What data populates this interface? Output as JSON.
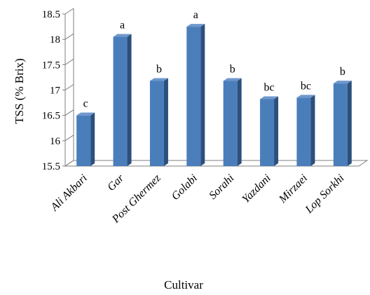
{
  "chart_data": {
    "type": "bar",
    "title": "",
    "xlabel": "Cultivar",
    "ylabel": "TSS (% Brix)",
    "ylim": [
      15.5,
      18.5
    ],
    "yticks": [
      "15.5",
      "16",
      "16.5",
      "17",
      "17.5",
      "18",
      "18.5"
    ],
    "categories": [
      "Ali Akbari",
      "Gar",
      "Post Ghermez",
      "Golabi",
      "Sorahi",
      "Yazdani",
      "Mirzaei",
      "Lop Sorkhi"
    ],
    "values": [
      16.5,
      18.05,
      17.18,
      18.25,
      17.18,
      16.82,
      16.85,
      17.13
    ],
    "significance_letters": [
      "c",
      "a",
      "b",
      "a",
      "b",
      "bc",
      "bc",
      "b"
    ],
    "grid": false,
    "legend": "none",
    "colors": {
      "bar_front": "#4a7ebb",
      "bar_side": "#2c4f7c",
      "bar_top": "#6f98cc",
      "axis": "#7f7f7f"
    }
  }
}
